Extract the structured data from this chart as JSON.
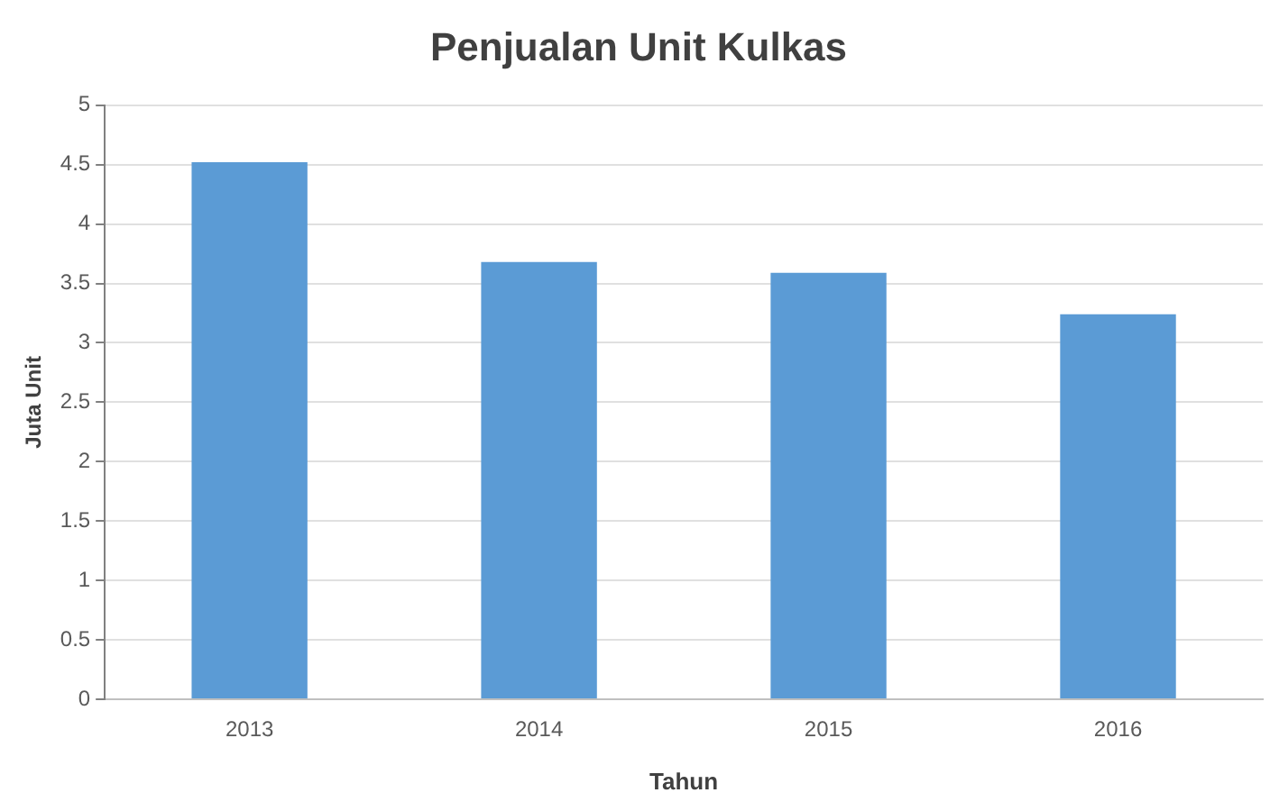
{
  "chart_data": {
    "type": "bar",
    "title": "Penjualan Unit Kulkas",
    "xlabel": "Tahun",
    "ylabel": "Juta Unit",
    "categories": [
      "2013",
      "2014",
      "2015",
      "2016"
    ],
    "values": [
      4.52,
      3.68,
      3.59,
      3.24
    ],
    "color": "#5b9bd5",
    "ylim": [
      0,
      5
    ],
    "yticks": [
      0,
      0.5,
      1,
      1.5,
      2,
      2.5,
      3,
      3.5,
      4,
      4.5,
      5
    ],
    "grid": "y",
    "legend": false
  }
}
